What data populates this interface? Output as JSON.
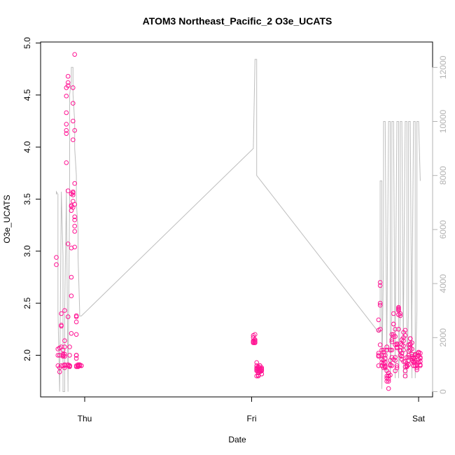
{
  "chart_data": {
    "type": "scatter",
    "title": "ATOM3 Northeast_Pacific_2 O3e_UCATS",
    "xlabel": "Date",
    "ylabel": "O3e_UCATS",
    "x_ticks": [
      "Thu",
      "Fri",
      "Sat"
    ],
    "xlim": [
      -0.162,
      2.04
    ],
    "ylim": [
      1.63,
      5.0
    ],
    "y_ticks": [
      "2.0",
      "2.5",
      "3.0",
      "3.5",
      "4.0",
      "4.5",
      "5.0"
    ],
    "y2_ticks": [
      "0",
      "2000",
      "4000",
      "6000",
      "8000",
      "10000",
      "12000"
    ],
    "y2lim": [
      0,
      12500
    ],
    "colors": {
      "points": "#ff1493",
      "secondary_line": "#bebebe",
      "axis": "#000000",
      "right_axis": "#b3b3b3"
    },
    "series": [
      {
        "type": "scatter",
        "x_days": [
          -0.17,
          -0.17,
          -0.16,
          -0.16,
          -0.16,
          -0.15,
          -0.15,
          -0.15,
          -0.15,
          -0.14,
          -0.14,
          -0.14,
          -0.14,
          -0.14,
          -0.13,
          -0.13,
          -0.13,
          -0.13,
          -0.13,
          -0.12,
          -0.12,
          -0.12,
          -0.12,
          -0.12,
          -0.12,
          -0.12,
          -0.12,
          -0.12,
          -0.11,
          -0.11,
          -0.11,
          -0.11,
          -0.11,
          -0.11,
          -0.11,
          -0.1,
          -0.1,
          -0.1,
          -0.1,
          -0.1,
          -0.1,
          -0.1,
          -0.1,
          -0.09,
          -0.09,
          -0.09,
          -0.09,
          -0.09,
          -0.09,
          -0.09,
          -0.09,
          -0.09,
          -0.09,
          -0.08,
          -0.08,
          -0.08,
          -0.08,
          -0.08,
          -0.08,
          -0.08,
          -0.08,
          -0.07,
          -0.07,
          -0.07,
          -0.07,
          -0.07,
          -0.07,
          -0.07,
          -0.07,
          -0.07,
          -0.06,
          -0.06,
          -0.06,
          -0.06,
          -0.06,
          -0.06,
          -0.06,
          -0.06,
          -0.06,
          -0.05,
          -0.05,
          -0.05,
          -0.05,
          -0.05,
          -0.05,
          -0.05,
          -0.05,
          -0.05,
          -0.05,
          -0.04,
          -0.04,
          -0.04,
          -0.04,
          -0.04,
          -0.04,
          -0.04,
          -0.04,
          -0.04,
          -0.04,
          -0.04,
          -0.03,
          -0.03,
          -0.03,
          -0.03,
          -0.03,
          -0.03,
          -0.02,
          -0.02,
          -0.02,
          1.01,
          1.01,
          1.01,
          1.01,
          1.01,
          1.01,
          1.01,
          1.02,
          1.02,
          1.02,
          1.02,
          1.02,
          1.02,
          1.02,
          1.03,
          1.03,
          1.03,
          1.03,
          1.03,
          1.03,
          1.03,
          1.04,
          1.04,
          1.04,
          1.04,
          1.04,
          1.04,
          1.04,
          1.05,
          1.05,
          1.05,
          1.05,
          1.05,
          1.05,
          1.05,
          1.06,
          1.06,
          1.06,
          1.06,
          1.06,
          1.06,
          1.06,
          1.76,
          1.76,
          1.76,
          1.76,
          1.76,
          1.76,
          1.77,
          1.77,
          1.77,
          1.77,
          1.77,
          1.77,
          1.78,
          1.78,
          1.78,
          1.78,
          1.78,
          1.78,
          1.79,
          1.79,
          1.79,
          1.79,
          1.79,
          1.79,
          1.8,
          1.8,
          1.8,
          1.8,
          1.8,
          1.8,
          1.81,
          1.81,
          1.81,
          1.81,
          1.81,
          1.81,
          1.82,
          1.82,
          1.82,
          1.82,
          1.82,
          1.82,
          1.83,
          1.83,
          1.83,
          1.83,
          1.83,
          1.83,
          1.84,
          1.84,
          1.84,
          1.84,
          1.84,
          1.84,
          1.85,
          1.85,
          1.85,
          1.85,
          1.85,
          1.85,
          1.86,
          1.86,
          1.86,
          1.86,
          1.86,
          1.86,
          1.87,
          1.87,
          1.87,
          1.87,
          1.87,
          1.87,
          1.88,
          1.88,
          1.88,
          1.88,
          1.88,
          1.88,
          1.89,
          1.89,
          1.89,
          1.89,
          1.89,
          1.89,
          1.9,
          1.9,
          1.9,
          1.9,
          1.9,
          1.9,
          1.91,
          1.91,
          1.91,
          1.91,
          1.91,
          1.91,
          1.92,
          1.92,
          1.92,
          1.92,
          1.92,
          1.92,
          1.93,
          1.93,
          1.93,
          1.93,
          1.93,
          1.93,
          1.94,
          1.94,
          1.94,
          1.94,
          1.94,
          1.94,
          1.95,
          1.95,
          1.95,
          1.95,
          1.95,
          1.95,
          1.96,
          1.96,
          1.96,
          1.96,
          1.96,
          1.96,
          1.97,
          1.97,
          1.97,
          1.97,
          1.97,
          1.97,
          1.98,
          1.98,
          1.98,
          1.98,
          1.98,
          1.98,
          1.99,
          1.99,
          1.99,
          1.99,
          1.99,
          1.99,
          2.0,
          2.0,
          2.0,
          2.0,
          2.0,
          2.0,
          2.01,
          2.01,
          2.01,
          2.01,
          2.01,
          2.01
        ],
        "y": [
          2.87,
          2.94,
          2.0,
          2.06,
          1.9,
          1.88,
          1.84,
          2.0,
          2.07,
          2.08,
          1.9,
          2.29,
          2.4,
          2.28,
          1.99,
          2.0,
          2.01,
          1.9,
          2.05,
          1.88,
          1.9,
          1.91,
          2.43,
          2.14,
          2.01,
          2.08,
          1.99,
          1.9,
          4.13,
          4.33,
          3.85,
          4.16,
          4.49,
          4.57,
          4.22,
          4.62,
          4.59,
          4.68,
          3.58,
          3.07,
          2.37,
          1.9,
          1.91,
          1.9,
          1.9,
          1.89,
          1.9,
          1.9,
          1.9,
          1.9,
          1.9,
          2.0,
          2.08,
          2.21,
          2.57,
          2.75,
          3.03,
          3.43,
          3.44,
          3.39,
          3.55,
          3.56,
          3.54,
          3.48,
          3.57,
          3.42,
          4.07,
          4.25,
          4.42,
          4.57,
          4.89,
          3.33,
          3.3,
          3.19,
          3.24,
          3.45,
          3.65,
          3.04,
          4.16,
          2.37,
          2.38,
          2.2,
          2.32,
          1.97,
          1.9,
          2.0,
          2.0,
          2.0,
          1.89,
          1.9,
          1.9,
          1.9,
          1.9,
          1.9,
          1.89,
          1.9,
          1.9,
          1.9,
          1.9,
          1.91,
          1.9,
          1.9,
          1.9,
          1.9,
          1.9,
          1.91,
          1.9,
          1.9,
          1.9,
          2.19,
          2.17,
          2.12,
          2.14,
          2.13,
          2.13,
          2.12,
          2.12,
          2.12,
          2.13,
          2.2,
          2.15,
          2.14,
          2.13,
          1.93,
          1.9,
          1.88,
          1.86,
          1.87,
          1.85,
          1.8,
          1.81,
          1.83,
          1.8,
          1.89,
          1.88,
          1.87,
          1.85,
          1.9,
          1.9,
          1.88,
          1.9,
          1.86,
          1.84,
          1.85,
          1.82,
          1.82,
          1.85,
          1.86,
          1.87,
          1.86,
          1.88,
          1.99,
          2.0,
          2.02,
          1.9,
          2.24,
          2.34,
          2.5,
          2.48,
          2.7,
          2.67,
          2.25,
          2.1,
          2.05,
          1.93,
          1.9,
          2.0,
          1.96,
          1.9,
          1.95,
          2.0,
          2.03,
          2.05,
          1.92,
          1.88,
          1.89,
          1.93,
          1.88,
          1.9,
          1.97,
          2.0,
          2.05,
          2.08,
          1.85,
          1.8,
          1.78,
          1.75,
          1.8,
          1.77,
          1.68,
          1.75,
          1.8,
          1.83,
          1.81,
          1.91,
          1.9,
          2.05,
          2.05,
          1.95,
          1.9,
          2.15,
          2.2,
          1.98,
          2.05,
          2.13,
          2.18,
          1.96,
          2.3,
          2.4,
          2.3,
          2.2,
          2.25,
          2.18,
          2.1,
          1.98,
          1.95,
          1.85,
          1.9,
          1.88,
          2.08,
          2.11,
          2.1,
          2.07,
          2.25,
          2.43,
          2.39,
          2.44,
          2.45,
          2.46,
          2.38,
          2.4,
          2.0,
          2.04,
          2.05,
          2.11,
          2.1,
          2.15,
          1.96,
          1.99,
          2.02,
          1.99,
          2.05,
          1.94,
          2.22,
          2.17,
          2.09,
          2.14,
          2.19,
          2.24,
          1.8,
          1.85,
          1.89,
          1.94,
          1.98,
          1.9,
          1.92,
          1.89,
          1.9,
          1.9,
          1.91,
          1.95,
          1.98,
          2.0,
          2.04,
          2.1,
          2.16,
          2.1,
          2.05,
          2.07,
          2.11,
          2.16,
          2.12,
          2.06,
          1.97,
          1.95,
          1.99,
          2.01,
          1.94,
          1.93,
          1.9,
          1.9,
          1.97,
          1.98,
          2.0,
          2.0,
          1.93,
          1.9,
          2.01,
          1.95,
          1.93,
          1.86,
          1.88,
          1.9,
          1.91,
          1.99,
          2.0,
          2.02,
          2.03,
          1.96,
          1.93,
          2.0,
          2.02,
          1.98,
          1.97,
          1.94,
          1.91,
          1.9
        ]
      },
      {
        "type": "line",
        "axis": "right",
        "x_days": [
          -0.17,
          -0.17,
          -0.16,
          -0.16,
          -0.15,
          -0.15,
          -0.14,
          -0.14,
          -0.13,
          -0.13,
          -0.12,
          -0.12,
          -0.11,
          -0.11,
          -0.1,
          -0.1,
          -0.09,
          -0.09,
          -0.08,
          -0.08,
          -0.07,
          -0.07,
          -0.06,
          -0.06,
          -0.05,
          -0.05,
          -0.04,
          -0.04,
          -0.03,
          -0.03,
          -0.02,
          -0.02,
          1.01,
          1.01,
          1.02,
          1.02,
          1.03,
          1.03,
          1.76,
          1.77,
          1.77,
          1.78,
          1.78,
          1.79,
          1.79,
          1.8,
          1.8,
          1.81,
          1.81,
          1.82,
          1.82,
          1.83,
          1.83,
          1.84,
          1.84,
          1.85,
          1.85,
          1.86,
          1.86,
          1.87,
          1.87,
          1.88,
          1.88,
          1.89,
          1.89,
          1.9,
          1.9,
          1.91,
          1.91,
          1.92,
          1.92,
          1.93,
          1.93,
          1.94,
          1.94,
          1.95,
          1.95,
          1.96,
          1.96,
          1.97,
          1.97,
          1.98,
          1.98,
          1.99,
          1.99,
          2.0,
          2.0,
          2.01,
          2.01
        ],
        "y": [
          7300,
          7400,
          7300,
          3000,
          0,
          0,
          7300,
          7400,
          5000,
          0,
          0,
          3000,
          7300,
          7500,
          0,
          300,
          7300,
          11000,
          11500,
          12000,
          12000,
          11000,
          10000,
          9000,
          8000,
          7000,
          6000,
          5000,
          3000,
          2800,
          2800,
          2800,
          9000,
          9000,
          12300,
          12300,
          12300,
          8000,
          2200,
          2200,
          7800,
          7800,
          100,
          5000,
          10000,
          10000,
          10000,
          500,
          2000,
          10000,
          10000,
          10000,
          500,
          3000,
          10000,
          10000,
          10000,
          500,
          2000,
          10000,
          10000,
          10000,
          500,
          3000,
          10000,
          10000,
          10000,
          500,
          3000,
          10000,
          10000,
          10000,
          500,
          3000,
          10000,
          10000,
          10000,
          500,
          3000,
          10000,
          10000,
          10000,
          500,
          3000,
          10000,
          10000,
          10000,
          7800,
          7800
        ]
      }
    ]
  }
}
